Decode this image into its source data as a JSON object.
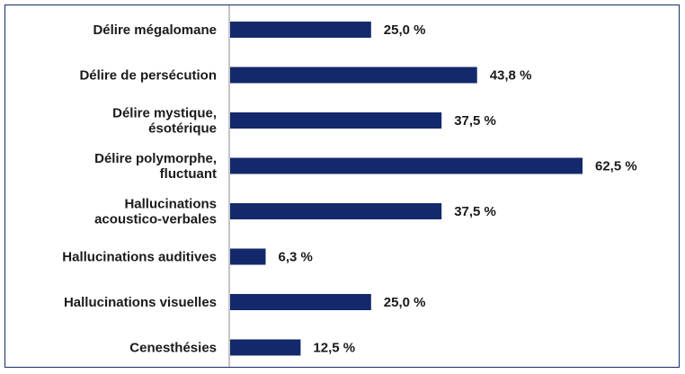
{
  "chart_data": {
    "type": "bar",
    "orientation": "horizontal",
    "categories": [
      [
        "Délire mégalomane"
      ],
      [
        "Délire de persécution"
      ],
      [
        "Délire mystique,",
        "ésotérique"
      ],
      [
        "Délire polymorphe,",
        "fluctuant"
      ],
      [
        "Hallucinations",
        "acoustico-verbales"
      ],
      [
        "Hallucinations auditives"
      ],
      [
        "Hallucinations visuelles"
      ],
      [
        "Cenesthésies"
      ]
    ],
    "values": [
      25.0,
      43.8,
      37.5,
      62.5,
      37.5,
      6.3,
      25.0,
      12.5
    ],
    "value_labels": [
      "25,0 %",
      "43,8 %",
      "37,5 %",
      "62,5 %",
      "37,5 %",
      "6,3 %",
      "25,0 %",
      "12,5 %"
    ],
    "xlim": [
      0,
      62.5
    ],
    "grid": false,
    "bar_color": "#13296b"
  }
}
